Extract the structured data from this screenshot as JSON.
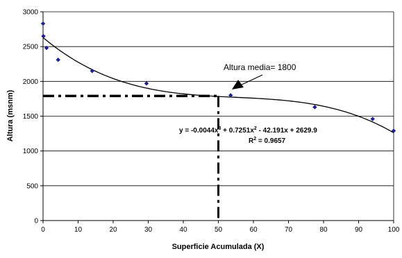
{
  "chart_data": {
    "type": "scatter",
    "xlabel": "Superficie Acumulada (X)",
    "ylabel": "Altura (msnm)",
    "xlim": [
      0,
      100
    ],
    "ylim": [
      0,
      3000
    ],
    "x_ticks": [
      "0",
      "10",
      "20",
      "30",
      "40",
      "50",
      "60",
      "70",
      "80",
      "90",
      "100"
    ],
    "y_ticks": [
      "0",
      "500",
      "1000",
      "1500",
      "2000",
      "2500",
      "3000"
    ],
    "grid": "horizontal",
    "legend": "none",
    "series": [
      {
        "marker": "diamond",
        "color": "#1f1f8f",
        "points": [
          {
            "x": 0,
            "y": 2830
          },
          {
            "x": 0.1,
            "y": 2650
          },
          {
            "x": 1,
            "y": 2480
          },
          {
            "x": 4.3,
            "y": 2310
          },
          {
            "x": 14,
            "y": 2150
          },
          {
            "x": 29.5,
            "y": 1970
          },
          {
            "x": 53.5,
            "y": 1800
          },
          {
            "x": 77.5,
            "y": 1630
          },
          {
            "x": 94,
            "y": 1460
          },
          {
            "x": 100,
            "y": 1290
          }
        ]
      }
    ],
    "trendline": {
      "type": "polynomial",
      "coefficients": {
        "a3": -0.0044,
        "a2": 0.7251,
        "a1": -42.191,
        "a0": 2629.9
      },
      "equation_line1_prefix": "y = -0.0044x",
      "equation_line1_mid": " + 0.7251x",
      "equation_line1_suffix": " - 42.191x + 2629.9",
      "exp3": "3",
      "exp2": "2",
      "r2_prefix": "R",
      "r2_exp": "2",
      "r2_suffix": " = 0.9657"
    },
    "reference_lines": {
      "x": 50,
      "y": 1790
    },
    "annotation": "Altura media= 1800"
  }
}
